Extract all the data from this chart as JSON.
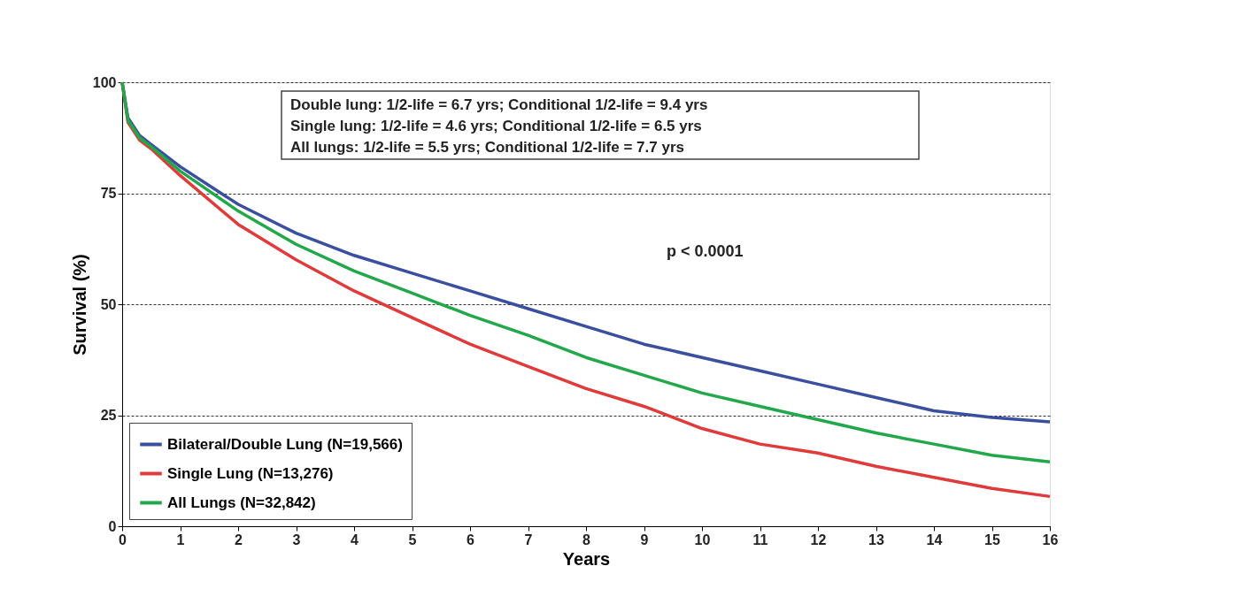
{
  "chart_data": {
    "type": "line",
    "xlabel": "Years",
    "ylabel": "Survival (%)",
    "x": [
      0,
      0.1,
      0.3,
      0.5,
      1,
      2,
      3,
      4,
      5,
      6,
      7,
      8,
      9,
      10,
      11,
      12,
      13,
      14,
      15,
      16
    ],
    "series": [
      {
        "name": "Bilateral/Double Lung (N=19,566)",
        "color": "#3a4fa0",
        "values": [
          100,
          92,
          88,
          86,
          81,
          72.5,
          66,
          61,
          57,
          53,
          49,
          45,
          41,
          38,
          35,
          32,
          29,
          26,
          24.5,
          23.5
        ]
      },
      {
        "name": "Single Lung (N=13,276)",
        "color": "#e03a3a",
        "values": [
          100,
          91,
          87,
          85,
          79,
          68,
          60,
          53,
          47,
          41,
          36,
          31,
          27,
          22,
          18.5,
          16.5,
          13.5,
          11,
          8.5,
          6.7
        ]
      },
      {
        "name": "All Lungs (N=32,842)",
        "color": "#22a84a",
        "values": [
          100,
          91.5,
          87.5,
          85.5,
          80,
          71,
          63.5,
          57.5,
          52.5,
          47.5,
          43,
          38,
          34,
          30,
          27,
          24,
          21,
          18.5,
          16,
          14.5
        ]
      }
    ],
    "xlim": [
      0,
      16
    ],
    "xticks": [
      0,
      1,
      2,
      3,
      4,
      5,
      6,
      7,
      8,
      9,
      10,
      11,
      12,
      13,
      14,
      15,
      16
    ],
    "ylim": [
      0,
      100
    ],
    "yticks": [
      0,
      25,
      50,
      75,
      100
    ],
    "grid": "y",
    "legend": "bottom left",
    "line_style": "solid",
    "marker": "none",
    "annotations": [
      "Double lung: 1/2-life = 6.7 yrs; Conditional 1/2-life = 9.4 yrs\nSingle lung: 1/2-life = 4.6 yrs; Conditional 1/2-life = 6.5 yrs\nAll lungs: 1/2-life = 5.5 yrs; Conditional 1/2-life = 7.7 yrs",
      "p < 0.0001"
    ]
  }
}
